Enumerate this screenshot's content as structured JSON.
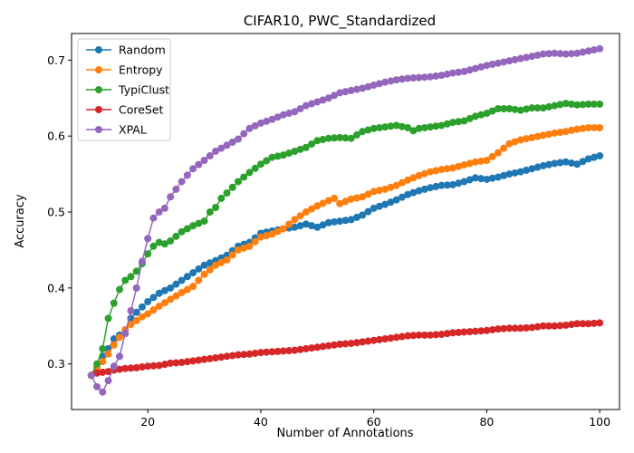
{
  "chart_data": {
    "type": "line",
    "title": "CIFAR10, PWC_Standardized",
    "xlabel": "Number of Annotations",
    "ylabel": "Accuracy",
    "xlim": [
      6.5,
      103.5
    ],
    "ylim": [
      0.24,
      0.735
    ],
    "xticks": [
      20,
      40,
      60,
      80,
      100
    ],
    "xtick_labels": [
      "20",
      "40",
      "60",
      "80",
      "100"
    ],
    "yticks": [
      0.3,
      0.4,
      0.5,
      0.6,
      0.7
    ],
    "ytick_labels": [
      "0.3",
      "0.4",
      "0.5",
      "0.6",
      "0.7"
    ],
    "grid": false,
    "legend_position": "top-left",
    "x_start": 10,
    "x_end": 100,
    "series": [
      {
        "name": "Random",
        "color": "#1f77b4",
        "anchors": [
          [
            10,
            0.285
          ],
          [
            11,
            0.295
          ],
          [
            12,
            0.31
          ],
          [
            13,
            0.32
          ],
          [
            14,
            0.333
          ],
          [
            15,
            0.338
          ],
          [
            16,
            0.34
          ],
          [
            17,
            0.36
          ],
          [
            18,
            0.368
          ],
          [
            19,
            0.375
          ],
          [
            20,
            0.382
          ],
          [
            22,
            0.393
          ],
          [
            24,
            0.4
          ],
          [
            26,
            0.41
          ],
          [
            28,
            0.42
          ],
          [
            30,
            0.43
          ],
          [
            32,
            0.436
          ],
          [
            34,
            0.443
          ],
          [
            36,
            0.455
          ],
          [
            38,
            0.46
          ],
          [
            40,
            0.472
          ],
          [
            42,
            0.475
          ],
          [
            44,
            0.478
          ],
          [
            46,
            0.48
          ],
          [
            48,
            0.484
          ],
          [
            50,
            0.48
          ],
          [
            52,
            0.486
          ],
          [
            54,
            0.488
          ],
          [
            56,
            0.49
          ],
          [
            58,
            0.496
          ],
          [
            60,
            0.505
          ],
          [
            62,
            0.51
          ],
          [
            64,
            0.516
          ],
          [
            66,
            0.523
          ],
          [
            68,
            0.528
          ],
          [
            70,
            0.532
          ],
          [
            72,
            0.535
          ],
          [
            74,
            0.536
          ],
          [
            76,
            0.54
          ],
          [
            78,
            0.545
          ],
          [
            80,
            0.543
          ],
          [
            82,
            0.546
          ],
          [
            84,
            0.55
          ],
          [
            86,
            0.553
          ],
          [
            88,
            0.557
          ],
          [
            90,
            0.561
          ],
          [
            92,
            0.564
          ],
          [
            94,
            0.566
          ],
          [
            96,
            0.563
          ],
          [
            98,
            0.57
          ],
          [
            100,
            0.574
          ]
        ]
      },
      {
        "name": "Entropy",
        "color": "#ff7f0e",
        "anchors": [
          [
            10,
            0.285
          ],
          [
            11,
            0.295
          ],
          [
            12,
            0.303
          ],
          [
            13,
            0.313
          ],
          [
            14,
            0.325
          ],
          [
            15,
            0.335
          ],
          [
            16,
            0.345
          ],
          [
            17,
            0.352
          ],
          [
            18,
            0.357
          ],
          [
            19,
            0.362
          ],
          [
            20,
            0.366
          ],
          [
            22,
            0.376
          ],
          [
            24,
            0.385
          ],
          [
            26,
            0.394
          ],
          [
            28,
            0.402
          ],
          [
            30,
            0.418
          ],
          [
            32,
            0.43
          ],
          [
            34,
            0.437
          ],
          [
            36,
            0.45
          ],
          [
            38,
            0.455
          ],
          [
            40,
            0.467
          ],
          [
            42,
            0.471
          ],
          [
            44,
            0.478
          ],
          [
            46,
            0.49
          ],
          [
            48,
            0.5
          ],
          [
            50,
            0.508
          ],
          [
            52,
            0.515
          ],
          [
            53,
            0.518
          ],
          [
            54,
            0.511
          ],
          [
            56,
            0.517
          ],
          [
            58,
            0.52
          ],
          [
            60,
            0.527
          ],
          [
            62,
            0.53
          ],
          [
            64,
            0.535
          ],
          [
            66,
            0.542
          ],
          [
            68,
            0.548
          ],
          [
            70,
            0.553
          ],
          [
            72,
            0.556
          ],
          [
            74,
            0.558
          ],
          [
            76,
            0.562
          ],
          [
            78,
            0.566
          ],
          [
            80,
            0.568
          ],
          [
            82,
            0.578
          ],
          [
            84,
            0.59
          ],
          [
            86,
            0.595
          ],
          [
            88,
            0.598
          ],
          [
            90,
            0.601
          ],
          [
            92,
            0.604
          ],
          [
            94,
            0.606
          ],
          [
            96,
            0.609
          ],
          [
            98,
            0.611
          ],
          [
            100,
            0.611
          ]
        ]
      },
      {
        "name": "TypiClust",
        "color": "#2ca02c",
        "anchors": [
          [
            10,
            0.285
          ],
          [
            11,
            0.3
          ],
          [
            12,
            0.32
          ],
          [
            13,
            0.36
          ],
          [
            14,
            0.38
          ],
          [
            15,
            0.398
          ],
          [
            16,
            0.41
          ],
          [
            17,
            0.415
          ],
          [
            18,
            0.422
          ],
          [
            19,
            0.432
          ],
          [
            20,
            0.445
          ],
          [
            21,
            0.455
          ],
          [
            22,
            0.46
          ],
          [
            23,
            0.458
          ],
          [
            24,
            0.462
          ],
          [
            26,
            0.474
          ],
          [
            28,
            0.482
          ],
          [
            30,
            0.488
          ],
          [
            31,
            0.5
          ],
          [
            32,
            0.506
          ],
          [
            33,
            0.518
          ],
          [
            34,
            0.525
          ],
          [
            36,
            0.54
          ],
          [
            38,
            0.552
          ],
          [
            40,
            0.563
          ],
          [
            42,
            0.572
          ],
          [
            44,
            0.575
          ],
          [
            46,
            0.58
          ],
          [
            48,
            0.585
          ],
          [
            50,
            0.594
          ],
          [
            52,
            0.597
          ],
          [
            54,
            0.598
          ],
          [
            56,
            0.597
          ],
          [
            58,
            0.606
          ],
          [
            60,
            0.61
          ],
          [
            62,
            0.612
          ],
          [
            64,
            0.614
          ],
          [
            66,
            0.611
          ],
          [
            67,
            0.607
          ],
          [
            68,
            0.61
          ],
          [
            70,
            0.612
          ],
          [
            72,
            0.614
          ],
          [
            74,
            0.618
          ],
          [
            76,
            0.62
          ],
          [
            78,
            0.626
          ],
          [
            80,
            0.63
          ],
          [
            82,
            0.636
          ],
          [
            84,
            0.636
          ],
          [
            86,
            0.634
          ],
          [
            88,
            0.637
          ],
          [
            90,
            0.637
          ],
          [
            92,
            0.64
          ],
          [
            94,
            0.643
          ],
          [
            96,
            0.641
          ],
          [
            98,
            0.642
          ],
          [
            100,
            0.642
          ]
        ]
      },
      {
        "name": "CoreSet",
        "color": "#d62728",
        "anchors": [
          [
            10,
            0.285
          ],
          [
            11,
            0.288
          ],
          [
            12,
            0.289
          ],
          [
            13,
            0.29
          ],
          [
            14,
            0.292
          ],
          [
            16,
            0.294
          ],
          [
            18,
            0.295
          ],
          [
            20,
            0.297
          ],
          [
            22,
            0.298
          ],
          [
            24,
            0.301
          ],
          [
            26,
            0.302
          ],
          [
            28,
            0.304
          ],
          [
            30,
            0.306
          ],
          [
            32,
            0.308
          ],
          [
            34,
            0.31
          ],
          [
            36,
            0.312
          ],
          [
            38,
            0.313
          ],
          [
            40,
            0.315
          ],
          [
            42,
            0.316
          ],
          [
            44,
            0.317
          ],
          [
            46,
            0.318
          ],
          [
            48,
            0.32
          ],
          [
            50,
            0.322
          ],
          [
            52,
            0.324
          ],
          [
            54,
            0.326
          ],
          [
            56,
            0.327
          ],
          [
            58,
            0.329
          ],
          [
            60,
            0.331
          ],
          [
            62,
            0.333
          ],
          [
            64,
            0.335
          ],
          [
            66,
            0.337
          ],
          [
            68,
            0.338
          ],
          [
            70,
            0.338
          ],
          [
            72,
            0.339
          ],
          [
            74,
            0.341
          ],
          [
            76,
            0.342
          ],
          [
            78,
            0.343
          ],
          [
            80,
            0.344
          ],
          [
            82,
            0.346
          ],
          [
            84,
            0.347
          ],
          [
            86,
            0.347
          ],
          [
            88,
            0.348
          ],
          [
            90,
            0.35
          ],
          [
            92,
            0.35
          ],
          [
            94,
            0.351
          ],
          [
            96,
            0.353
          ],
          [
            98,
            0.353
          ],
          [
            100,
            0.354
          ]
        ]
      },
      {
        "name": "XPAL",
        "color": "#9467bd",
        "anchors": [
          [
            10,
            0.285
          ],
          [
            11,
            0.27
          ],
          [
            12,
            0.263
          ],
          [
            13,
            0.278
          ],
          [
            14,
            0.297
          ],
          [
            15,
            0.31
          ],
          [
            16,
            0.34
          ],
          [
            17,
            0.37
          ],
          [
            18,
            0.4
          ],
          [
            19,
            0.435
          ],
          [
            20,
            0.465
          ],
          [
            21,
            0.492
          ],
          [
            22,
            0.5
          ],
          [
            23,
            0.505
          ],
          [
            24,
            0.52
          ],
          [
            26,
            0.54
          ],
          [
            28,
            0.557
          ],
          [
            30,
            0.568
          ],
          [
            32,
            0.58
          ],
          [
            34,
            0.588
          ],
          [
            36,
            0.596
          ],
          [
            38,
            0.61
          ],
          [
            40,
            0.617
          ],
          [
            42,
            0.622
          ],
          [
            44,
            0.628
          ],
          [
            46,
            0.632
          ],
          [
            48,
            0.64
          ],
          [
            50,
            0.645
          ],
          [
            52,
            0.65
          ],
          [
            54,
            0.657
          ],
          [
            56,
            0.66
          ],
          [
            58,
            0.663
          ],
          [
            60,
            0.667
          ],
          [
            62,
            0.671
          ],
          [
            64,
            0.674
          ],
          [
            66,
            0.676
          ],
          [
            68,
            0.677
          ],
          [
            70,
            0.678
          ],
          [
            72,
            0.68
          ],
          [
            74,
            0.683
          ],
          [
            76,
            0.685
          ],
          [
            78,
            0.689
          ],
          [
            80,
            0.693
          ],
          [
            82,
            0.696
          ],
          [
            84,
            0.699
          ],
          [
            86,
            0.702
          ],
          [
            88,
            0.705
          ],
          [
            90,
            0.708
          ],
          [
            92,
            0.709
          ],
          [
            94,
            0.708
          ],
          [
            96,
            0.709
          ],
          [
            98,
            0.712
          ],
          [
            100,
            0.715
          ]
        ]
      }
    ]
  }
}
